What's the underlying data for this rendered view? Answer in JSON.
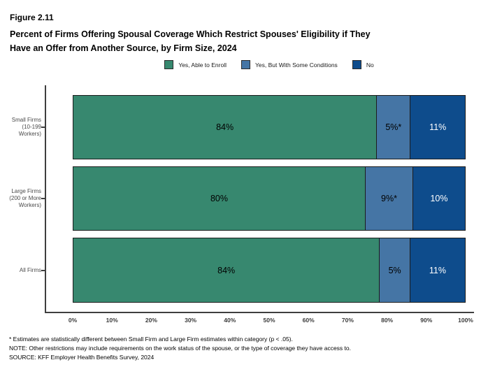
{
  "figure_label": "Figure 2.11",
  "title_lines": [
    "Percent of Firms Offering Spousal Coverage Which Restrict Spouses' Eligibility if They",
    "Have an Offer from Another Source, by Firm Size, 2024"
  ],
  "chart_data": {
    "type": "bar",
    "stacked": true,
    "orientation": "horizontal",
    "title": "Percent of Firms Offering Spousal Coverage Which Restrict Spouses' Eligibility if They Have an Offer from Another Source, by Firm Size, 2024",
    "categories": [
      "Small Firms (10-199 Workers)",
      "Large Firms (200 or More Workers)",
      "All Firms"
    ],
    "category_label_lines": [
      [
        "Small Firms",
        "(10-199",
        "Workers)"
      ],
      [
        "Large Firms",
        "(200 or More",
        "Workers)"
      ],
      [
        "All Firms"
      ]
    ],
    "series": [
      {
        "name": "Yes, Able to Enroll",
        "color": "#37886F",
        "label_color": "#000000",
        "values": [
          84,
          80,
          84
        ],
        "labels": [
          "84%",
          "80%",
          "84%"
        ]
      },
      {
        "name": "Yes, But With Some Conditions",
        "color": "#4575A5",
        "label_color": "#000000",
        "values": [
          5,
          9,
          5
        ],
        "labels": [
          "5%*",
          "9%*",
          "5%"
        ]
      },
      {
        "name": "No",
        "color": "#0E4C8C",
        "label_color": "#FFFFFF",
        "values": [
          11,
          10,
          11
        ],
        "labels": [
          "11%",
          "10%",
          "11%"
        ]
      }
    ],
    "x_tick_labels": [
      "0%",
      "10%",
      "20%",
      "30%",
      "40%",
      "50%",
      "60%",
      "70%",
      "80%",
      "90%",
      "100%"
    ],
    "xlim": [
      0,
      100
    ],
    "legend_position": "top",
    "grid": false
  },
  "footnotes": [
    "* Estimates are statistically different between Small Firm and Large Firm estimates within category (p < .05).",
    "NOTE: Other restrictions may include requirements on the work status of the spouse, or the type of coverage they have access to.",
    "SOURCE: KFF Employer Health Benefits Survey, 2024"
  ]
}
